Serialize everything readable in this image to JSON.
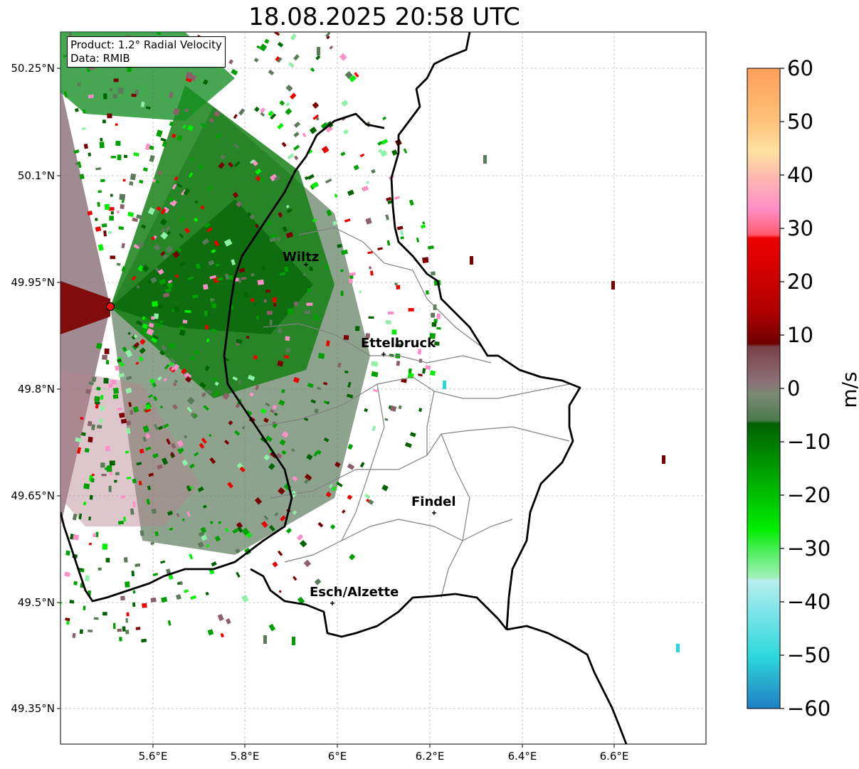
{
  "title": "18.08.2025 20:58 UTC",
  "info": {
    "product": "Product: 1.2° Radial Velocity",
    "data_source": "Data: RMIB"
  },
  "axes": {
    "lat_ticks": [
      "50.25°N",
      "50.1°N",
      "49.95°N",
      "49.8°N",
      "49.65°N",
      "49.5°N",
      "49.35°N"
    ],
    "lon_ticks": [
      "5.6°E",
      "5.8°E",
      "6°E",
      "6.2°E",
      "6.4°E",
      "6.6°E"
    ],
    "grid": true
  },
  "colorbar": {
    "label": "m/s",
    "ticks": [
      "60",
      "50",
      "40",
      "30",
      "20",
      "10",
      "0",
      "−10",
      "−20",
      "−30",
      "−40",
      "−50",
      "−60"
    ],
    "colors": {
      "orange": "#ff9f5a",
      "light_orange": "#ffcf8f",
      "pink": "#ff8fc8",
      "salmon_red": "#ff5a6e",
      "red": "#ee0000",
      "dark_red": "#7a0000",
      "brown_grey": "#8c6068",
      "neutral": "#8a7a7a",
      "grey_green": "#5a7a5a",
      "dark_green": "#006400",
      "green": "#00a000",
      "bright_green": "#00ee00",
      "light_green": "#8ff0a8",
      "pale_cyan": "#b8eef0",
      "cyan": "#2ad8dc",
      "blue": "#1f7fc4"
    }
  },
  "places": [
    {
      "name": "Wiltz"
    },
    {
      "name": "Ettelbruck"
    },
    {
      "name": "Findel"
    },
    {
      "name": "Esch/Alzette"
    }
  ],
  "radar_site": {
    "color": "#ee1111"
  }
}
